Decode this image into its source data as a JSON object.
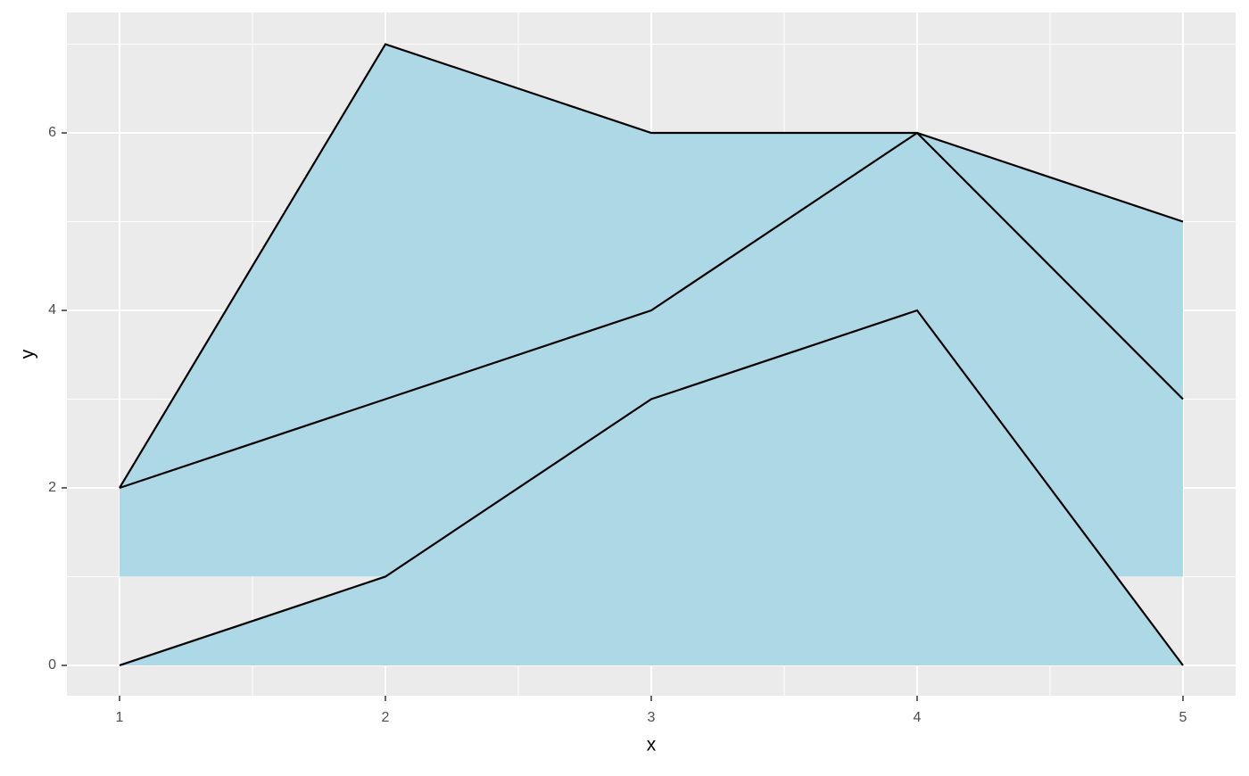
{
  "chart_data": {
    "type": "ribbon",
    "x_label": "x",
    "y_label": "y",
    "x": [
      1,
      2,
      3,
      4,
      5
    ],
    "series": [
      {
        "color": "#add8e6",
        "ymin": [
          1,
          1,
          1,
          1,
          1
        ],
        "values": [
          2,
          7,
          6,
          6,
          5
        ]
      },
      {
        "color": "#add8e6",
        "ymin": [
          0,
          0,
          0,
          0,
          0
        ],
        "values": [
          0,
          1,
          3,
          4,
          0
        ]
      },
      {
        "color": null,
        "values": [
          2,
          3,
          4,
          6,
          3
        ]
      }
    ],
    "line_color": "#000000",
    "xlim": [
      0.802,
      5.198
    ],
    "ylim": [
      -0.342,
      7.357
    ],
    "xticks": [
      1,
      2,
      3,
      4,
      5
    ],
    "yticks": [
      0,
      2,
      4,
      6
    ],
    "grid": true
  }
}
